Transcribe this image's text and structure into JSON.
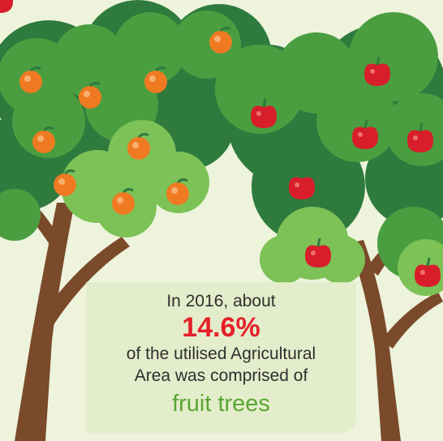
{
  "caption": {
    "line1": "In 2016, about",
    "value": "14.6%",
    "line2": "of the utilised Agricultural",
    "line3": "Area was comprised of",
    "highlight": "fruit trees"
  },
  "colors": {
    "background": "#eef3dc",
    "dark_foliage": "#2f7b3e",
    "mid_foliage": "#4a9e3f",
    "light_foliage": "#7cc257",
    "trunk": "#7a4a2a",
    "orange_fruit": "#f07a22",
    "apple_fruit": "#d81e2a",
    "value_red": "#e5202a",
    "highlight_green": "#5aa632"
  },
  "icons": [
    "orange-fruit-icon",
    "apple-fruit-icon"
  ]
}
